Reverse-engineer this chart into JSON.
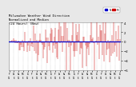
{
  "title_line1": "Milwaukee Weather Wind Direction",
  "title_line2": "Normalized and Median",
  "title_line3": "(24 Hours) (New)",
  "background_color": "#e8e8e8",
  "plot_bg_color": "#ffffff",
  "bar_color": "#cc0000",
  "median_color": "#0000cc",
  "median_value": 0.0,
  "ylim": [
    -6,
    4
  ],
  "yticks": [
    4,
    2,
    0,
    -2,
    -4,
    -6
  ],
  "n_points": 144,
  "title_fontsize": 3.5,
  "legend_blue_label": "N",
  "legend_red_label": "M",
  "seed": 42
}
